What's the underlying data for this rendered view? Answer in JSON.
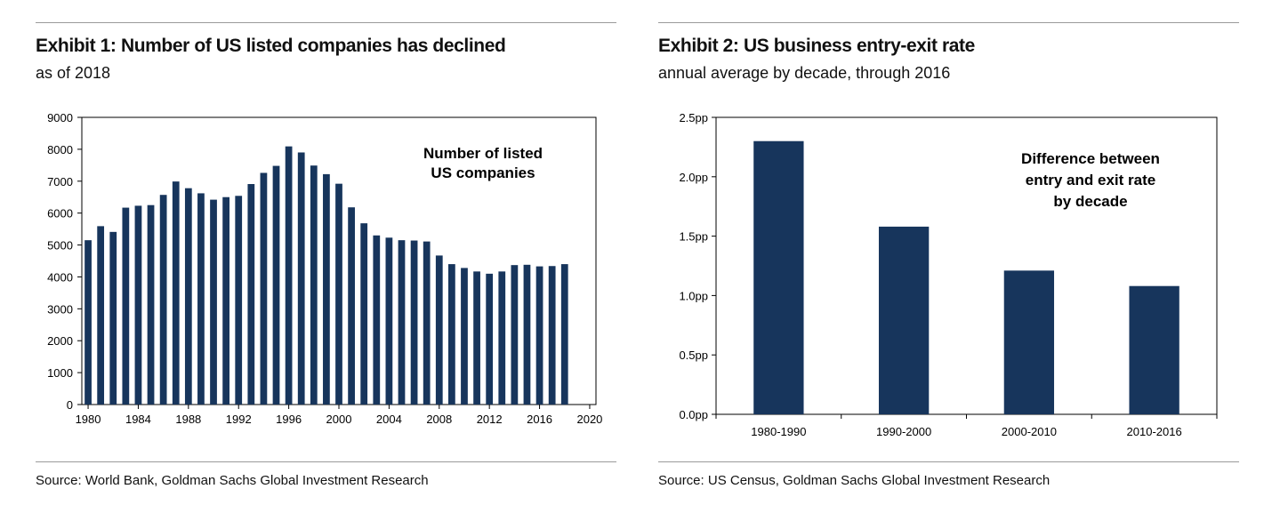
{
  "exhibits": [
    {
      "title": "Exhibit 1: Number of US listed companies has declined",
      "subtitle": "as of 2018",
      "source": "Source: World Bank, Goldman Sachs Global Investment Research"
    },
    {
      "title": "Exhibit 2: US business entry-exit rate",
      "subtitle": "annual average by decade, through 2016",
      "source": "Source: US Census, Goldman Sachs Global Investment Research"
    }
  ],
  "chart_data": [
    {
      "type": "bar",
      "annotation": [
        "Number of listed",
        "US companies"
      ],
      "x": [
        1980,
        1981,
        1982,
        1983,
        1984,
        1985,
        1986,
        1987,
        1988,
        1989,
        1990,
        1991,
        1992,
        1993,
        1994,
        1995,
        1996,
        1997,
        1998,
        1999,
        2000,
        2001,
        2002,
        2003,
        2004,
        2005,
        2006,
        2007,
        2008,
        2009,
        2010,
        2011,
        2012,
        2013,
        2014,
        2015,
        2016,
        2017,
        2018
      ],
      "values": [
        5150,
        5590,
        5410,
        6170,
        6230,
        6250,
        6570,
        6990,
        6780,
        6620,
        6420,
        6500,
        6540,
        6910,
        7260,
        7480,
        8090,
        7900,
        7490,
        7220,
        6920,
        6180,
        5680,
        5300,
        5230,
        5150,
        5140,
        5110,
        4670,
        4400,
        4280,
        4170,
        4100,
        4170,
        4370,
        4380,
        4330,
        4340,
        4400
      ],
      "ylim": [
        0,
        9000
      ],
      "yticks": [
        0,
        1000,
        2000,
        3000,
        4000,
        5000,
        6000,
        7000,
        8000,
        9000
      ],
      "xlim": [
        1979.5,
        2020.5
      ],
      "xticks": [
        1980,
        1984,
        1988,
        1992,
        1996,
        2000,
        2004,
        2008,
        2012,
        2016,
        2020
      ],
      "color": "#17355C",
      "grid": false
    },
    {
      "type": "bar",
      "annotation": [
        "Difference between",
        "entry and exit rate",
        "by decade"
      ],
      "categories": [
        "1980-1990",
        "1990-2000",
        "2000-2010",
        "2010-2016"
      ],
      "values": [
        2.3,
        1.58,
        1.21,
        1.08
      ],
      "ylim": [
        0,
        2.5
      ],
      "yticks": [
        0.0,
        0.5,
        1.0,
        1.5,
        2.0,
        2.5
      ],
      "ytick_labels": [
        "0.0pp",
        "0.5pp",
        "1.0pp",
        "1.5pp",
        "2.0pp",
        "2.5pp"
      ],
      "color": "#17355C",
      "grid": false
    }
  ]
}
